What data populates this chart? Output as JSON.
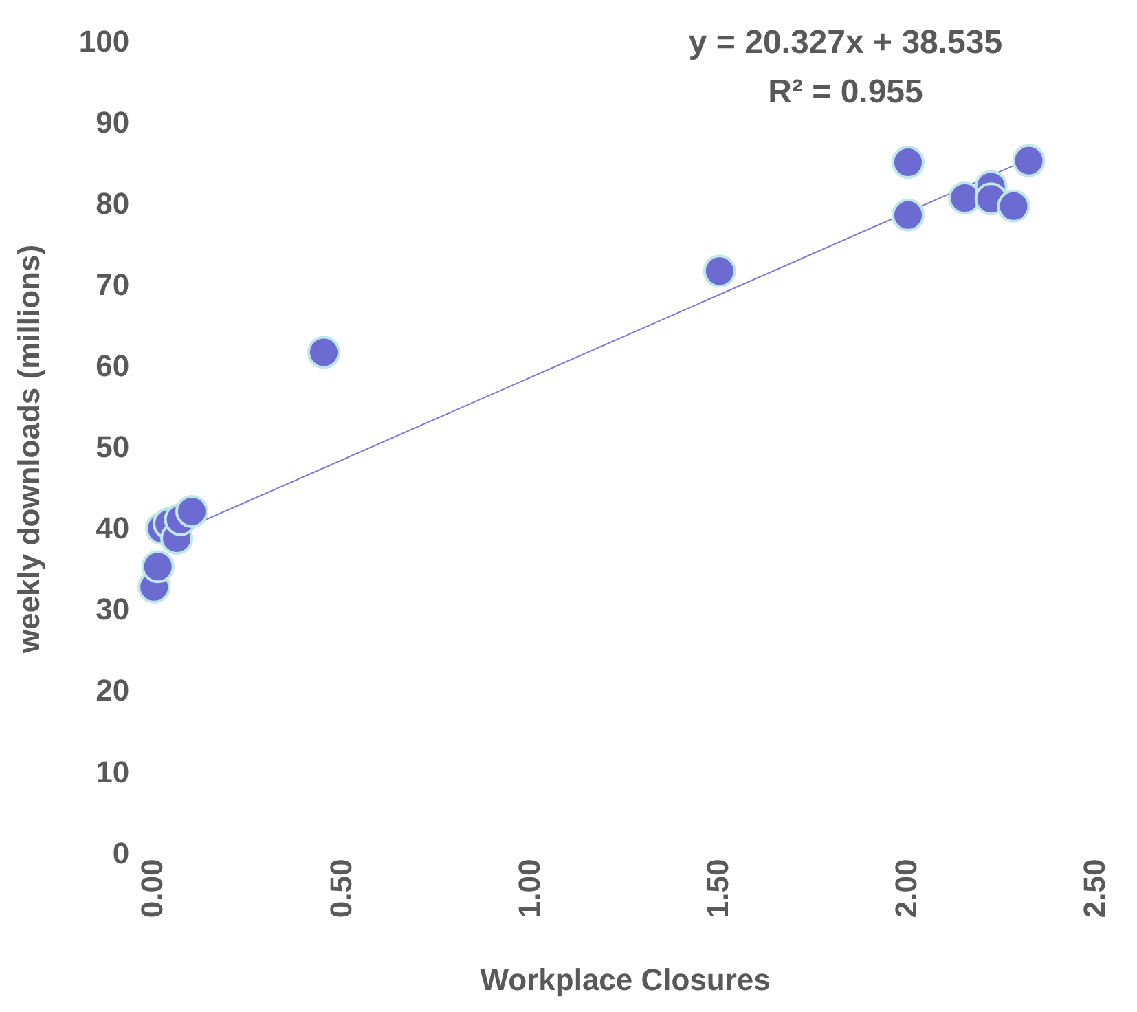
{
  "chart_data": {
    "type": "scatter",
    "xlabel": "Workplace Closures",
    "ylabel": "weekly downloads (millions)",
    "xlim": [
      0,
      2.5
    ],
    "ylim": [
      0,
      100
    ],
    "xticks": [
      {
        "value": 0,
        "label": "0.00"
      },
      {
        "value": 0.5,
        "label": "0.50"
      },
      {
        "value": 1,
        "label": "1.00"
      },
      {
        "value": 1.5,
        "label": "1.50"
      },
      {
        "value": 2,
        "label": "2.00"
      },
      {
        "value": 2.5,
        "label": "2.50"
      }
    ],
    "yticks": [
      0,
      10,
      20,
      30,
      40,
      50,
      60,
      70,
      80,
      90,
      100
    ],
    "grid": false,
    "legend": false,
    "marker": "circle",
    "annotations": [
      "y = 20.327x + 38.535",
      "R² = 0.955"
    ],
    "series": [
      {
        "type": "scatter",
        "color": "#6b6bd1",
        "x": [
          0,
          0.01,
          0.02,
          0.04,
          0.06,
          0.07,
          0.1,
          0.45,
          1.5,
          2.0,
          2.0,
          2.15,
          2.22,
          2.22,
          2.28,
          2.32
        ],
        "values": [
          33,
          35.5,
          40.2,
          40.8,
          39,
          41.3,
          42.3,
          61.9,
          71.9,
          85.3,
          78.8,
          80.9,
          82.3,
          80.8,
          79.9,
          85.5
        ]
      },
      {
        "type": "line",
        "color": "#7b7bdc",
        "line_style": "solid",
        "marker": "none",
        "x": [
          0,
          2.32
        ],
        "values": [
          38.5,
          85.7
        ]
      }
    ]
  }
}
